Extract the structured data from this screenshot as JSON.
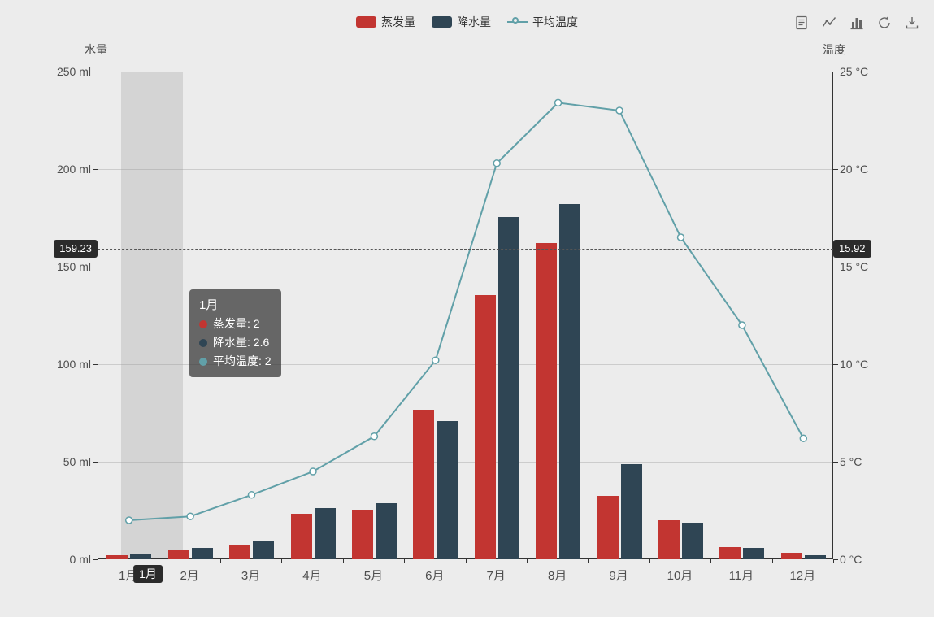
{
  "legend": {
    "items": [
      {
        "label": "蒸发量",
        "color": "#c23531",
        "marker": "rect"
      },
      {
        "label": "降水量",
        "color": "#2f4554",
        "marker": "rect"
      },
      {
        "label": "平均温度",
        "color": "#61a0a8",
        "marker": "line-circle"
      }
    ]
  },
  "toolbox": {
    "icons": [
      "data-view-icon",
      "line-chart-type-icon",
      "bar-chart-type-icon",
      "restore-icon",
      "save-image-icon"
    ]
  },
  "chart_data": {
    "type": "bar",
    "categories": [
      "1月",
      "2月",
      "3月",
      "4月",
      "5月",
      "6月",
      "7月",
      "8月",
      "9月",
      "10月",
      "11月",
      "12月"
    ],
    "series": [
      {
        "name": "蒸发量",
        "type": "bar",
        "axis": "left",
        "color": "#c23531",
        "values": [
          2.0,
          4.9,
          7.0,
          23.2,
          25.6,
          76.7,
          135.6,
          162.2,
          32.6,
          20.0,
          6.4,
          3.3
        ]
      },
      {
        "name": "降水量",
        "type": "bar",
        "axis": "left",
        "color": "#2f4554",
        "values": [
          2.6,
          5.9,
          9.0,
          26.4,
          28.7,
          70.7,
          175.6,
          182.2,
          48.7,
          18.8,
          6.0,
          2.3
        ]
      },
      {
        "name": "平均温度",
        "type": "line",
        "axis": "right",
        "color": "#61a0a8",
        "values": [
          2.0,
          2.2,
          3.3,
          4.5,
          6.3,
          10.2,
          20.3,
          23.4,
          23.0,
          16.5,
          12.0,
          6.2
        ]
      }
    ],
    "y_axis_left": {
      "name": "水量",
      "min": 0,
      "max": 250,
      "step": 50,
      "unit": "ml",
      "tick_labels": [
        "0 ml",
        "50 ml",
        "100 ml",
        "150 ml",
        "200 ml",
        "250 ml"
      ]
    },
    "y_axis_right": {
      "name": "温度",
      "min": 0,
      "max": 25,
      "step": 5,
      "unit": "°C",
      "tick_labels": [
        "0 °C",
        "5 °C",
        "10 °C",
        "15 °C",
        "20 °C",
        "25 °C"
      ]
    },
    "legend_position": "top-center",
    "grid": true
  },
  "tooltip": {
    "title": "1月",
    "rows": [
      {
        "label": "蒸发量",
        "value": "2",
        "color": "#c23531"
      },
      {
        "label": "降水量",
        "value": "2.6",
        "color": "#2f4554"
      },
      {
        "label": "平均温度",
        "value": "2",
        "color": "#61a0a8"
      }
    ]
  },
  "axis_pointer": {
    "x_label": "1月",
    "left_value": "159.23",
    "right_value": "15.92",
    "hovered_category": "1月"
  }
}
